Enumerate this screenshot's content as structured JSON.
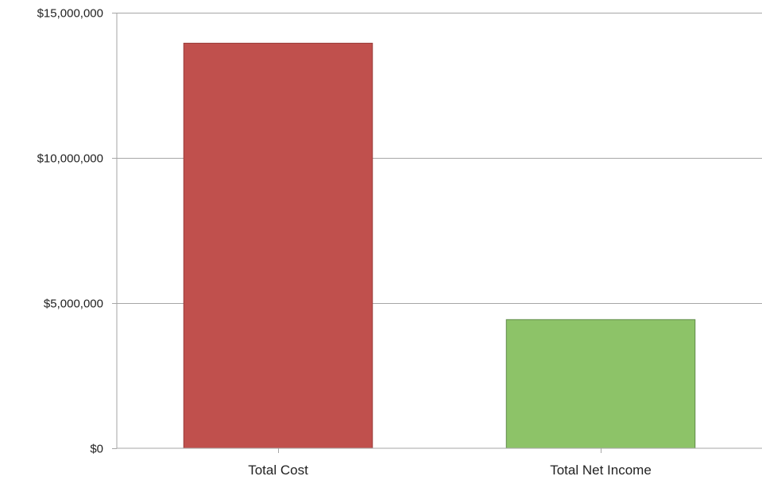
{
  "chart_data": {
    "type": "bar",
    "title": "",
    "xlabel": "",
    "ylabel": "",
    "categories": [
      "Total Cost",
      "Total Net Income"
    ],
    "values": [
      13950000,
      4430000
    ],
    "bar_colors": [
      "#c0504d",
      "#8dc368"
    ],
    "bar_edge_colors": [
      "#9a3e3b",
      "#5f8a48"
    ],
    "ylim": [
      0,
      15000000
    ],
    "yticks": [
      0,
      5000000,
      10000000,
      15000000
    ],
    "ytick_labels": [
      "$0",
      "$5,000,000",
      "$10,000,000",
      "$15,000,000"
    ],
    "grid": true,
    "legend": "none"
  }
}
